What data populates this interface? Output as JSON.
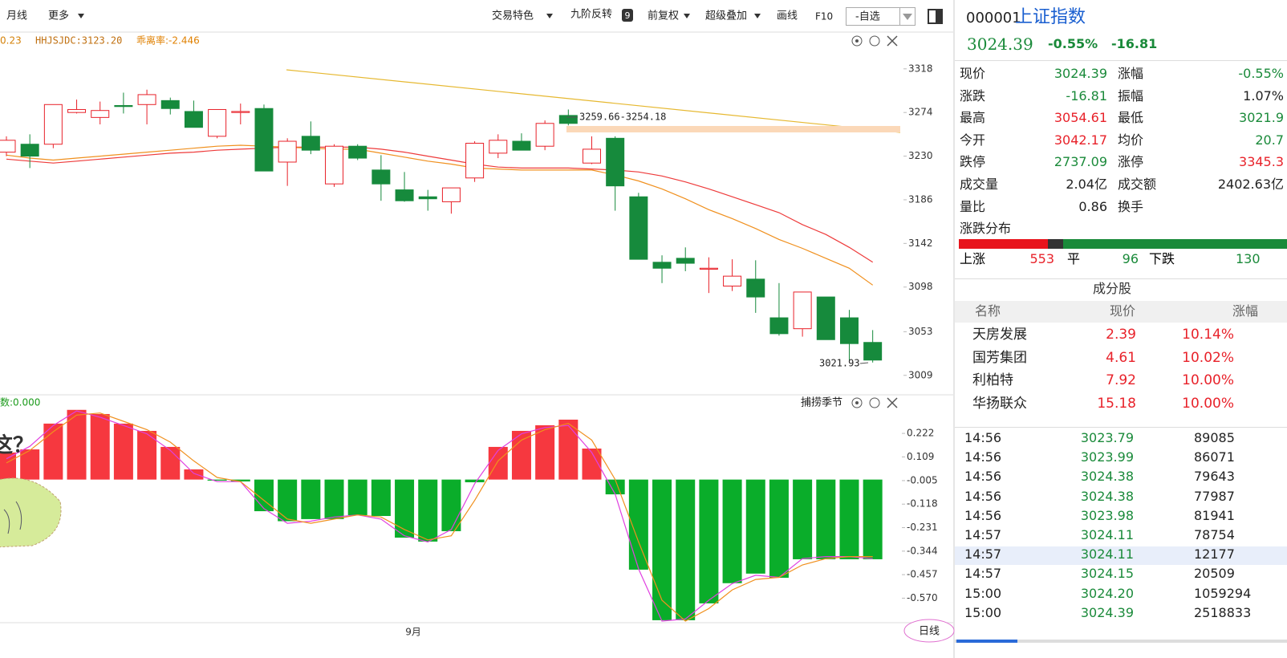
{
  "toolbar": {
    "left": [
      "月线",
      "更多"
    ],
    "right": [
      "交易特色",
      "九阶反转",
      "前复权",
      "超级叠加",
      "画线",
      "F10"
    ],
    "badge": "9",
    "select": "-自选"
  },
  "chart_data": [
    {
      "type": "candlestick",
      "legend": [
        "0.23",
        "HHJSJDC:3123.20",
        "乖离率:-2.446"
      ],
      "categories": [
        null,
        null,
        null,
        null,
        null,
        null,
        null,
        null,
        null,
        null,
        null,
        null,
        null,
        null,
        null,
        null,
        null,
        "9月",
        null,
        null,
        null,
        null,
        null,
        null,
        null,
        null,
        null,
        null,
        null,
        null,
        null,
        null,
        null,
        null,
        null,
        null,
        null,
        null
      ],
      "open": [
        3234,
        3242,
        3242,
        3274,
        3269,
        3281,
        3282,
        3286,
        3275,
        3250,
        3274,
        3278,
        3224,
        3250,
        3202,
        3240,
        3216,
        3196,
        3189,
        3184,
        3208,
        3233,
        3245,
        3240,
        3271,
        3223,
        3248,
        3189,
        3123,
        3127,
        3116,
        3099,
        3106,
        3067,
        3056,
        3088,
        3067,
        3042.17
      ],
      "high": [
        3250,
        3252,
        3282,
        3287,
        3285,
        3294,
        3297,
        3289,
        3286,
        3277,
        3283,
        3282,
        3248,
        3265,
        3242,
        3242,
        3231,
        3214,
        3196,
        3198,
        3245,
        3252,
        3253,
        3266,
        3277,
        3250,
        3250,
        3193,
        3130,
        3138,
        3128,
        3126,
        3125,
        3102,
        3093,
        3088,
        3075,
        3054.61
      ],
      "low": [
        3230,
        3218,
        3238,
        3273,
        3262,
        3273,
        3262,
        3272,
        3259,
        3248,
        3262,
        3215,
        3200,
        3232,
        3199,
        3226,
        3185,
        3184,
        3175,
        3172,
        3204,
        3228,
        3236,
        3236,
        3261,
        3222,
        3175,
        3126,
        3102,
        3114,
        3092,
        3094,
        3072,
        3049,
        3048,
        3045,
        3024,
        3021.93
      ],
      "close": [
        3246,
        3230,
        3282,
        3277,
        3276,
        3280,
        3292,
        3278,
        3259,
        3277,
        3275,
        3215,
        3245,
        3236,
        3240,
        3228,
        3202,
        3185,
        3187,
        3198,
        3243,
        3246,
        3236,
        3263,
        3263,
        3237,
        3200,
        3126,
        3117,
        3122,
        3117,
        3109,
        3088,
        3051,
        3093,
        3045,
        3041,
        3024.39
      ],
      "up_color": "#e8222a",
      "down_color": "#168a3c",
      "series": [
        {
          "color": "#ee3b3b",
          "values": [
            3227,
            3225,
            3223,
            3225,
            3227,
            3229,
            3231,
            3233,
            3234,
            3236,
            3237,
            3238,
            3239,
            3239,
            3239,
            3239,
            3237,
            3234,
            3230,
            3226,
            3222,
            3219,
            3218,
            3218,
            3218,
            3217,
            3216,
            3214,
            3210,
            3204,
            3197,
            3189,
            3181,
            3173,
            3161,
            3151,
            3138,
            3123
          ]
        },
        {
          "color": "#f0901e",
          "values": [
            3231,
            3228,
            3226,
            3228,
            3230,
            3232,
            3234,
            3236,
            3238,
            3240,
            3241,
            3240,
            3239,
            3238,
            3237,
            3237,
            3233,
            3229,
            3225,
            3222,
            3218,
            3217,
            3216,
            3216,
            3216,
            3216,
            3211,
            3205,
            3197,
            3187,
            3176,
            3167,
            3157,
            3146,
            3137,
            3127,
            3117,
            3100
          ]
        }
      ],
      "ylim": [
        2991,
        3351
      ],
      "yticks": [
        3318,
        3274,
        3230,
        3186,
        3142,
        3098,
        3053,
        3009
      ],
      "annotations": [
        "3259.66-3254.18",
        "3021.93"
      ]
    },
    {
      "type": "bar",
      "title": "捕捞季节",
      "legend": "数:0.000",
      "values": [
        0.13,
        0.145,
        0.269,
        0.335,
        0.315,
        0.269,
        0.234,
        0.157,
        0.049,
        -0.005,
        -0.009,
        -0.152,
        -0.2,
        -0.19,
        -0.19,
        -0.171,
        -0.175,
        -0.279,
        -0.298,
        -0.248,
        -0.013,
        0.157,
        0.234,
        0.261,
        0.288,
        0.149,
        -0.071,
        -0.433,
        -0.676,
        -0.676,
        -0.595,
        -0.498,
        -0.452,
        -0.472,
        -0.383,
        -0.383,
        -0.383,
        -0.383
      ],
      "up_color": "#f6383f",
      "down_color": "#0aad2a",
      "series": [
        {
          "color": "#e040e0",
          "values": [
            0.1,
            0.16,
            0.26,
            0.33,
            0.3,
            0.26,
            0.22,
            0.14,
            0.03,
            -0.01,
            -0.01,
            -0.14,
            -0.21,
            -0.2,
            -0.18,
            -0.17,
            -0.19,
            -0.27,
            -0.3,
            -0.24,
            -0.02,
            0.14,
            0.22,
            0.25,
            0.26,
            0.13,
            -0.07,
            -0.43,
            -0.68,
            -0.67,
            -0.58,
            -0.5,
            -0.46,
            -0.47,
            -0.38,
            -0.37,
            -0.37,
            -0.38
          ]
        },
        {
          "color": "#f0901e",
          "values": [
            0.08,
            0.14,
            0.23,
            0.31,
            0.32,
            0.28,
            0.24,
            0.18,
            0.09,
            0.01,
            -0.01,
            -0.1,
            -0.19,
            -0.21,
            -0.19,
            -0.17,
            -0.18,
            -0.24,
            -0.29,
            -0.27,
            -0.1,
            0.09,
            0.19,
            0.24,
            0.27,
            0.19,
            0.0,
            -0.3,
            -0.58,
            -0.68,
            -0.62,
            -0.53,
            -0.48,
            -0.47,
            -0.41,
            -0.38,
            -0.37,
            -0.37
          ]
        }
      ],
      "ylim": [
        -0.684,
        0.338
      ],
      "yticks": [
        0.222,
        0.109,
        -0.005,
        -0.118,
        -0.231,
        -0.344,
        -0.457,
        {
          "value": -0.57,
          "label": "-0.570"
        }
      ]
    }
  ],
  "period_button": "日线",
  "sticker": "这？",
  "quote": {
    "code": "000001",
    "name": "上证指数",
    "price": "3024.39",
    "pct": "-0.55%",
    "change": "-16.81",
    "stats": [
      [
        {
          "label": "现价",
          "value": "3024.39",
          "color": "#1a8a3a"
        },
        {
          "label": "涨幅",
          "value": "-0.55%",
          "color": "#1a8a3a"
        }
      ],
      [
        {
          "label": "涨跌",
          "value": "-16.81",
          "color": "#1a8a3a"
        },
        {
          "label": "振幅",
          "value": "1.07%",
          "color": "#222"
        }
      ],
      [
        {
          "label": "最高",
          "value": "3054.61",
          "color": "#e8222a"
        },
        {
          "label": "最低",
          "value": "3021.9",
          "color": "#1a8a3a"
        }
      ],
      [
        {
          "label": "今开",
          "value": "3042.17",
          "color": "#e8222a"
        },
        {
          "label": "均价",
          "value": "20.7",
          "color": "#1a8a3a"
        }
      ],
      [
        {
          "label": "跌停",
          "value": "2737.09",
          "color": "#1a8a3a"
        },
        {
          "label": "涨停",
          "value": "3345.3",
          "color": "#e8222a"
        }
      ],
      [
        {
          "label": "成交量",
          "value": "2.04亿",
          "color": "#222"
        },
        {
          "label": "成交额",
          "value": "2402.63亿",
          "color": "#222"
        }
      ],
      [
        {
          "label": "量比",
          "value": "0.86",
          "color": "#222"
        },
        {
          "label": "换手"
        }
      ]
    ],
    "dist_title": "涨跌分布",
    "rise_label": "上涨",
    "rise": 553,
    "flat_label": "平",
    "flat": 96,
    "fall_label": "下跌",
    "fall": "130",
    "components_title": "成分股",
    "columns": [
      "名称",
      "现价",
      "涨幅"
    ],
    "components": [
      [
        "天房发展",
        "2.39",
        "10.14%"
      ],
      [
        "国芳集团",
        "4.61",
        "10.02%"
      ],
      [
        "利柏特",
        "7.92",
        "10.00%"
      ],
      [
        "华扬联众",
        "15.18",
        "10.00%"
      ]
    ],
    "ticks": [
      [
        "14:56",
        "3023.79",
        "89085"
      ],
      [
        "14:56",
        "3023.99",
        "86071"
      ],
      [
        "14:56",
        "3024.38",
        "79643"
      ],
      [
        "14:56",
        "3024.38",
        "77987"
      ],
      [
        "14:56",
        "3023.98",
        "81941"
      ],
      [
        "14:57",
        "3024.11",
        "78754"
      ],
      [
        "14:57",
        "3024.11",
        "12177"
      ],
      [
        "14:57",
        "3024.15",
        "20509"
      ],
      [
        "15:00",
        "3024.20",
        "1059294"
      ],
      [
        "15:00",
        "3024.39",
        "2518833"
      ]
    ]
  }
}
